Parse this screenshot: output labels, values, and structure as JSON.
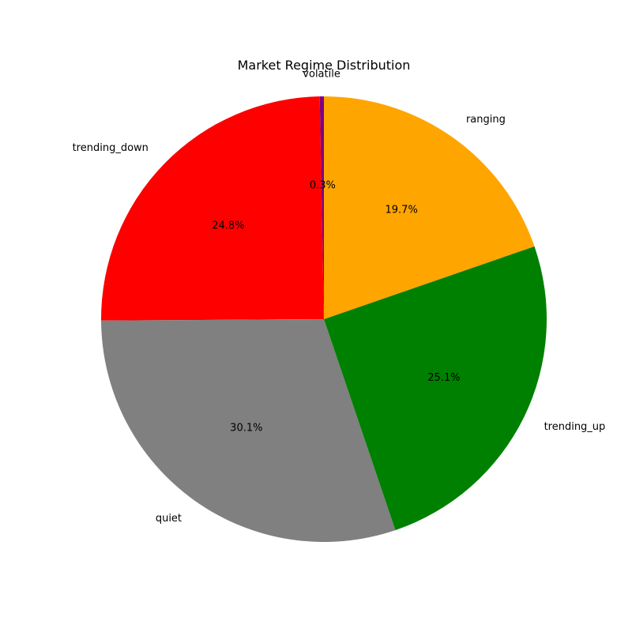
{
  "chart_data": {
    "type": "pie",
    "title": "Market Regime Distribution",
    "start_angle_deg": 90,
    "direction": "counterclockwise",
    "slices": [
      {
        "label": "volatile",
        "value": 0.3,
        "pct_text": "0.3%",
        "color": "#800080"
      },
      {
        "label": "trending_down",
        "value": 24.8,
        "pct_text": "24.8%",
        "color": "#ff0000"
      },
      {
        "label": "quiet",
        "value": 30.1,
        "pct_text": "30.1%",
        "color": "#808080"
      },
      {
        "label": "trending_up",
        "value": 25.1,
        "pct_text": "25.1%",
        "color": "#008000"
      },
      {
        "label": "ranging",
        "value": 19.7,
        "pct_text": "19.7%",
        "color": "#ffa500"
      }
    ]
  }
}
